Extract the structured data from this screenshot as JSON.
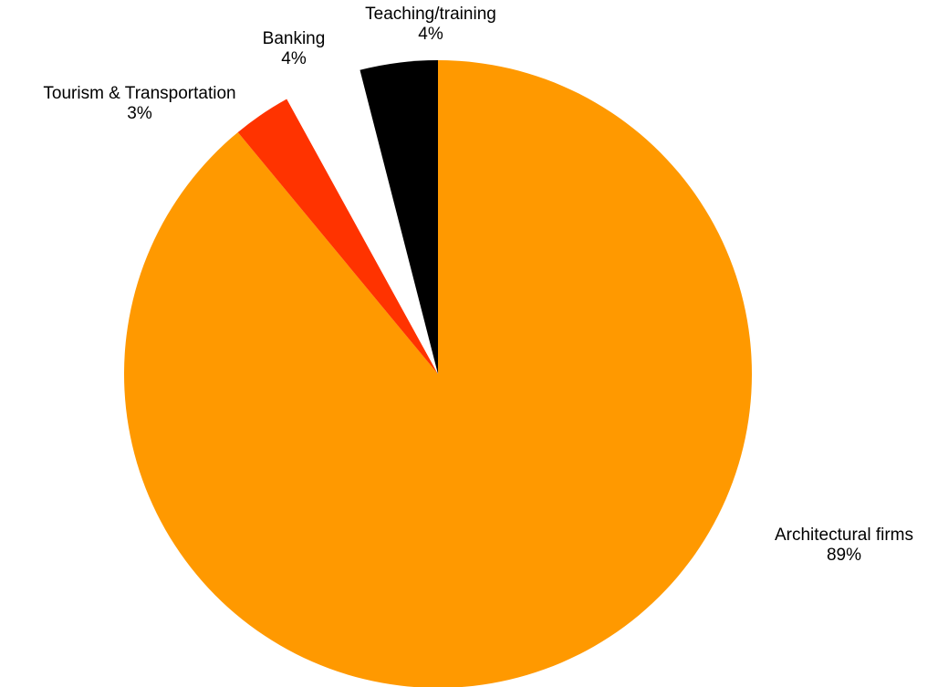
{
  "chart_data": {
    "type": "pie",
    "title": "",
    "slices": [
      {
        "label": "Architectural firms",
        "value": 89,
        "value_label": "89%",
        "color": "#FF9900"
      },
      {
        "label": "Tourism & Transportation",
        "value": 3,
        "value_label": "3%",
        "color": "#FF3300"
      },
      {
        "label": "Banking",
        "value": 4,
        "value_label": "4%",
        "color": "#FFFFFF"
      },
      {
        "label": "Teaching/training",
        "value": 4,
        "value_label": "4%",
        "color": "#000000"
      }
    ],
    "start_angle": "12 o'clock",
    "direction": "clockwise",
    "legend": "none"
  }
}
